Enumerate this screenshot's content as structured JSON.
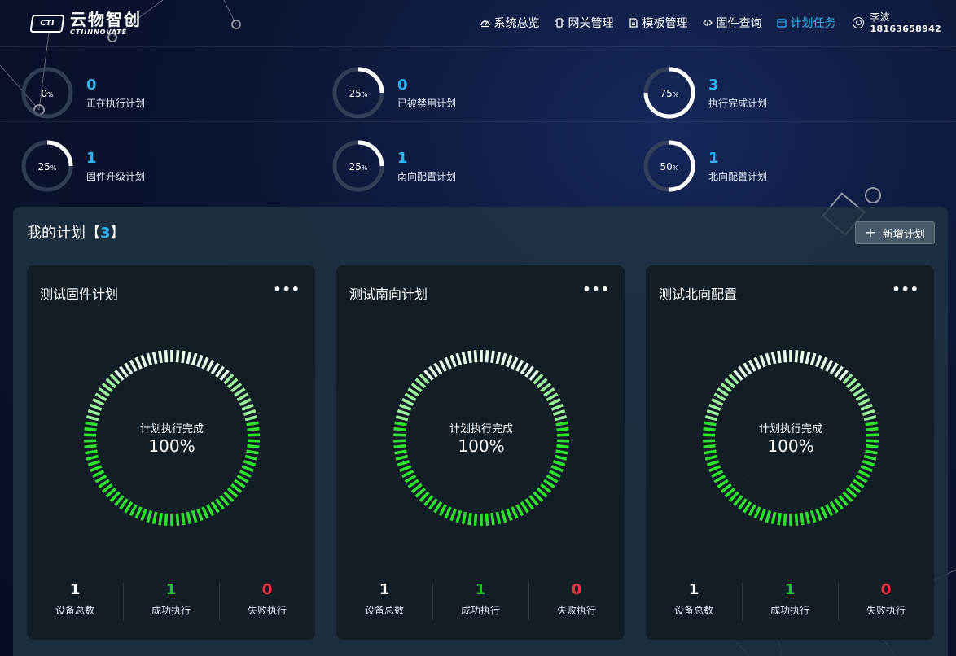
{
  "header": {
    "logo_mark": "CTI",
    "logo_cn": "云物智创",
    "logo_en": "CTIINNOVATE",
    "nav": [
      {
        "label": "系统总览",
        "icon": "dashboard-icon"
      },
      {
        "label": "网关管理",
        "icon": "gateway-icon"
      },
      {
        "label": "模板管理",
        "icon": "document-icon"
      },
      {
        "label": "固件查询",
        "icon": "code-icon"
      },
      {
        "label": "计划任务",
        "icon": "calendar-icon",
        "active": true
      }
    ],
    "user": {
      "name": "李波",
      "phone": "18163658942",
      "icon": "user-circle-icon"
    }
  },
  "stats": [
    {
      "percent": 0,
      "percent_text": "0",
      "count": "0",
      "label": "正在执行计划"
    },
    {
      "percent": 25,
      "percent_text": "25",
      "count": "0",
      "label": "已被禁用计划"
    },
    {
      "percent": 75,
      "percent_text": "75",
      "count": "3",
      "label": "执行完成计划"
    },
    {
      "percent": 25,
      "percent_text": "25",
      "count": "1",
      "label": "固件升级计划"
    },
    {
      "percent": 25,
      "percent_text": "25",
      "count": "1",
      "label": "南向配置计划"
    },
    {
      "percent": 50,
      "percent_text": "50",
      "count": "1",
      "label": "北向配置计划"
    }
  ],
  "stat_unit": "%",
  "panel": {
    "title_prefix": "我的计划【",
    "count": "3",
    "title_suffix": "】",
    "add_button": "新增计划",
    "add_icon": "plus-icon"
  },
  "plans": [
    {
      "title": "测试固件计划",
      "ring_label": "计划执行完成",
      "progress": 100,
      "progress_text": "100%",
      "device_total": "1",
      "device_total_label": "设备总数",
      "success": "1",
      "success_label": "成功执行",
      "fail": "0",
      "fail_label": "失败执行"
    },
    {
      "title": "测试南向计划",
      "ring_label": "计划执行完成",
      "progress": 100,
      "progress_text": "100%",
      "device_total": "1",
      "device_total_label": "设备总数",
      "success": "1",
      "success_label": "成功执行",
      "fail": "0",
      "fail_label": "失败执行"
    },
    {
      "title": "测试北向配置",
      "ring_label": "计划执行完成",
      "progress": 100,
      "progress_text": "100%",
      "device_total": "1",
      "device_total_label": "设备总数",
      "success": "1",
      "success_label": "成功执行",
      "fail": "0",
      "fail_label": "失败执行"
    }
  ],
  "more_icon": "more-dots-icon",
  "colors": {
    "accent": "#2fb4f2",
    "success": "#27c427",
    "fail": "#ee3344",
    "ring_green": "#2fe02f",
    "ring_light": "#e8ffe8"
  }
}
